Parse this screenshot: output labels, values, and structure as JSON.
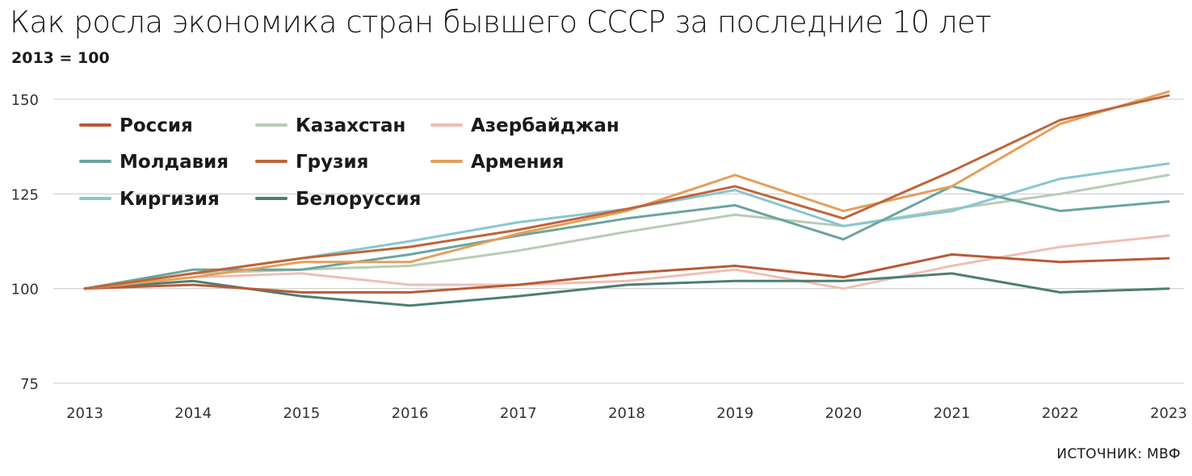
{
  "title": "Как росла экономика стран бывшего СССР за последние 10 лет",
  "subtitle": "2013 = 100",
  "source": "ИСТОЧНИК: МВФ",
  "chart_data": {
    "type": "line",
    "title": "Как росла экономика стран бывшего СССР за последние 10 лет",
    "subtitle": "2013 = 100",
    "x": [
      "2013",
      "2014",
      "2015",
      "2016",
      "2017",
      "2018",
      "2019",
      "2020",
      "2021",
      "2022",
      "2023"
    ],
    "ylim": [
      75,
      155
    ],
    "yticks": [
      75,
      100,
      125,
      150
    ],
    "grid": true,
    "legend_position": "top-left",
    "series": [
      {
        "name": "Россия",
        "color": "#b85a37",
        "values": [
          100,
          101,
          99,
          99,
          101,
          104,
          106,
          103,
          109,
          107,
          108
        ]
      },
      {
        "name": "Казахстан",
        "color": "#b8cbb6",
        "values": [
          100,
          104,
          105,
          106,
          110,
          115,
          119.5,
          116.5,
          121,
          125,
          130
        ]
      },
      {
        "name": "Азербайджан",
        "color": "#efbfb3",
        "values": [
          100,
          103,
          104,
          101,
          101,
          102,
          105,
          100,
          106,
          111,
          114
        ]
      },
      {
        "name": "Молдавия",
        "color": "#6aa59f",
        "values": [
          100,
          105,
          105,
          109,
          114,
          118.5,
          122,
          113,
          127,
          120.5,
          123
        ]
      },
      {
        "name": "Грузия",
        "color": "#c0653a",
        "values": [
          100,
          104,
          108,
          111,
          115.5,
          121,
          127,
          118.5,
          131,
          144.5,
          151
        ]
      },
      {
        "name": "Армения",
        "color": "#e3a05a",
        "values": [
          100,
          103,
          107,
          107,
          114.5,
          120.5,
          130,
          120.5,
          127,
          143.5,
          152
        ]
      },
      {
        "name": "Киргизия",
        "color": "#88c6d2",
        "values": [
          100,
          104,
          108,
          112.5,
          117.5,
          121,
          126,
          116.5,
          120.5,
          129,
          133
        ]
      },
      {
        "name": "Белоруссия",
        "color": "#4b7f73",
        "values": [
          100,
          102,
          98,
          95.5,
          98,
          101,
          102,
          102,
          104,
          99,
          100
        ]
      }
    ]
  }
}
